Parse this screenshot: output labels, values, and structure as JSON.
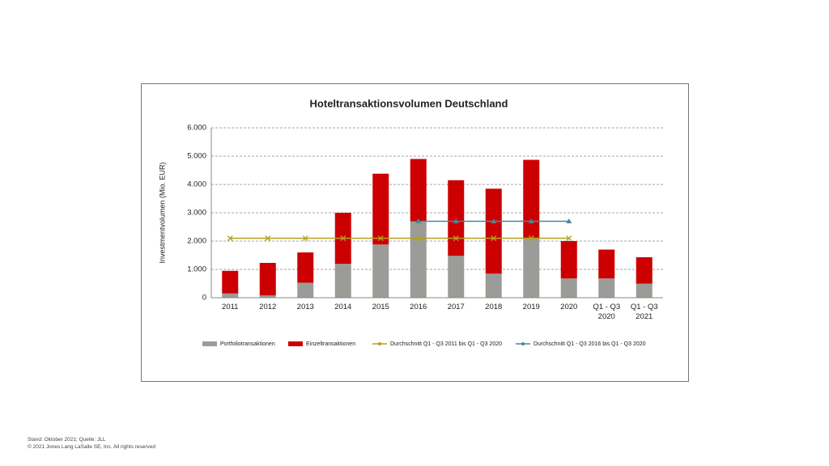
{
  "chart_data": {
    "type": "bar",
    "stacked": true,
    "title": "Hoteltransaktionsvolumen Deutschland",
    "y_label": "Investmentvolumen (Mio. EUR)",
    "categories": [
      "2011",
      "2012",
      "2013",
      "2014",
      "2015",
      "2016",
      "2017",
      "2018",
      "2019",
      "2020",
      "Q1 - Q3 2020",
      "Q1 - Q3 2021"
    ],
    "series": [
      {
        "name": "Portfoliotransaktionen",
        "type": "bar",
        "color": "#9b9c97",
        "values": [
          150,
          80,
          530,
          1200,
          1880,
          2700,
          1480,
          850,
          2100,
          680,
          680,
          500
        ]
      },
      {
        "name": "Einzeltransaktionen",
        "type": "bar",
        "color": "#cc0000",
        "values": [
          800,
          1150,
          1070,
          1800,
          2500,
          2200,
          2670,
          3000,
          2770,
          1320,
          1020,
          930
        ]
      },
      {
        "name": "Durchschnitt Q1 - Q3 2011 bis Q1 - Q3 2020",
        "type": "line",
        "marker": "x",
        "color": "#b5a020",
        "values": [
          2100,
          2100,
          2100,
          2100,
          2100,
          2100,
          2100,
          2100,
          2100,
          2100,
          null,
          null
        ]
      },
      {
        "name": "Durchschnitt Q1 - Q3 2016 bis Q1 - Q3 2020",
        "type": "line",
        "marker": "triangle",
        "color": "#4a8898",
        "values": [
          null,
          null,
          null,
          null,
          null,
          2700,
          2700,
          2700,
          2700,
          2700,
          null,
          null
        ]
      }
    ],
    "ylim": [
      0,
      6000
    ],
    "yticks": [
      0,
      {
        "value": 1000,
        "label": "1.000"
      },
      {
        "value": 2000,
        "label": "2.000"
      },
      {
        "value": 3000,
        "label": "3.000"
      },
      {
        "value": 4000,
        "label": "4.000"
      },
      {
        "value": 5000,
        "label": "5.000"
      },
      {
        "value": 6000,
        "label": "6.000"
      }
    ],
    "grid": true,
    "legend": "bottom"
  },
  "footer": {
    "source": "Stand: Oktober 2021; Quelle: JLL",
    "copyright": "© 2021 Jones Lang LaSalle SE, Inc. All rights reserved"
  }
}
